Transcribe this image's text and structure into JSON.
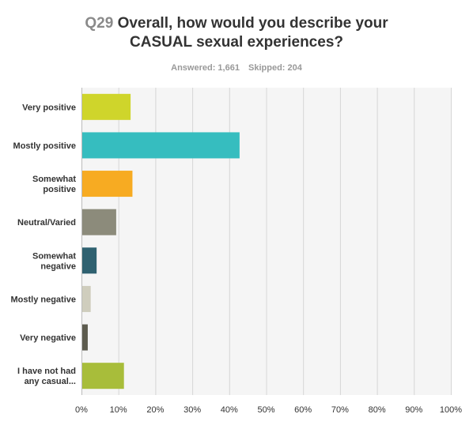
{
  "header": {
    "qnum": "Q29",
    "line1": "Overall, how would you describe your",
    "line2": "CASUAL sexual experiences?",
    "answered": "Answered: 1,661",
    "skipped": "Skipped: 204"
  },
  "chart_data": {
    "type": "bar",
    "orientation": "horizontal",
    "categories": [
      [
        "Very positive"
      ],
      [
        "Mostly positive"
      ],
      [
        "Somewhat",
        "positive"
      ],
      [
        "Neutral/Varied"
      ],
      [
        "Somewhat",
        "negative"
      ],
      [
        "Mostly negative"
      ],
      [
        "Very negative"
      ],
      [
        "I have not had",
        "any casual..."
      ]
    ],
    "values": [
      13.3,
      42.8,
      13.8,
      9.4,
      4.1,
      2.5,
      1.7,
      11.5
    ],
    "colors": [
      "#cfd52b",
      "#36bdbf",
      "#f7ab22",
      "#8c8b7b",
      "#2f6170",
      "#cfcdbd",
      "#5d5c4f",
      "#a8bd3a"
    ],
    "xlim": [
      0,
      100
    ],
    "xticks": [
      "0%",
      "10%",
      "20%",
      "30%",
      "40%",
      "50%",
      "60%",
      "70%",
      "80%",
      "90%",
      "100%"
    ],
    "grid": true,
    "plot_background": "#f5f5f5"
  }
}
